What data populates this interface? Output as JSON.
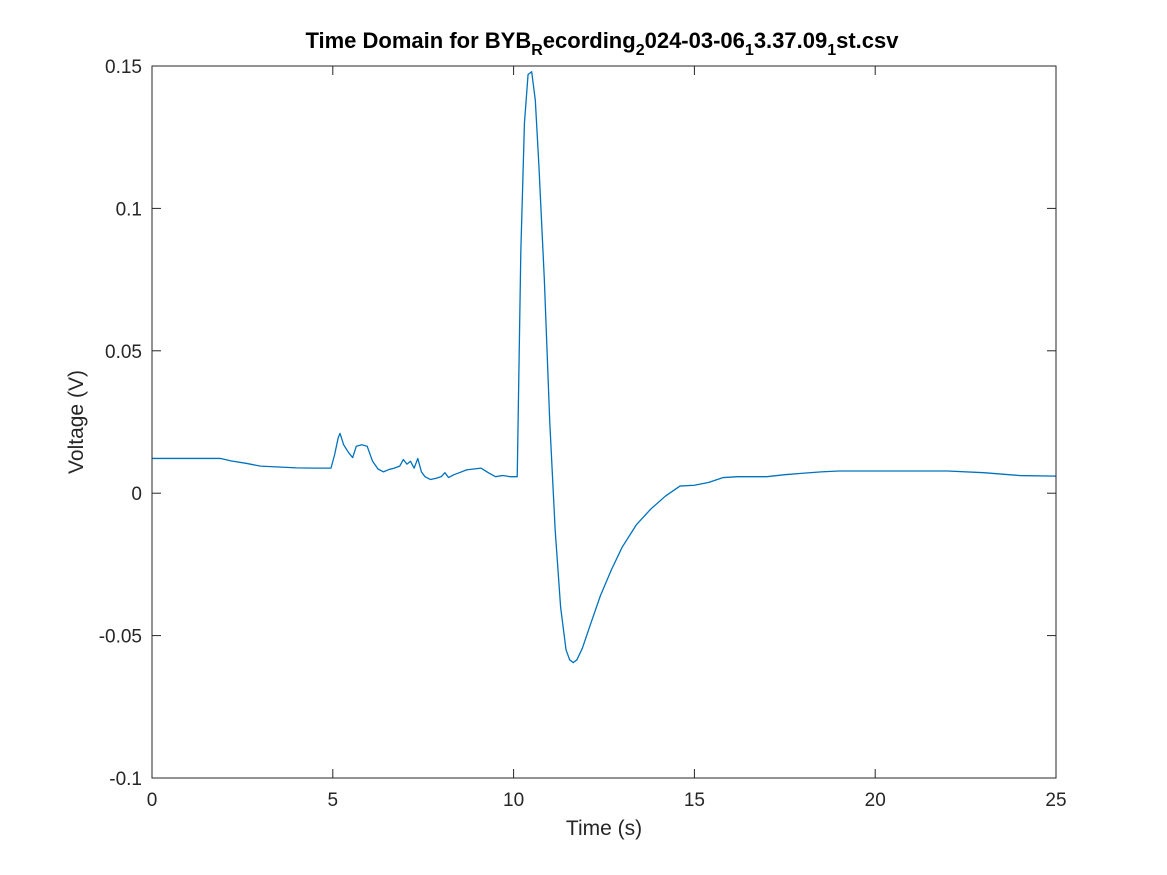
{
  "chart_data": {
    "type": "line",
    "title_parts": [
      {
        "text": "Time Domain for BYB",
        "sub": false
      },
      {
        "text": "R",
        "sub": true
      },
      {
        "text": "ecording",
        "sub": false
      },
      {
        "text": "2",
        "sub": true
      },
      {
        "text": "024-03-06",
        "sub": false
      },
      {
        "text": "1",
        "sub": true
      },
      {
        "text": "3.37.09",
        "sub": false
      },
      {
        "text": "1",
        "sub": true
      },
      {
        "text": "st.csv",
        "sub": false
      }
    ],
    "xlabel": "Time (s)",
    "ylabel": "Voltage (V)",
    "xlim": [
      0,
      25
    ],
    "ylim": [
      -0.1,
      0.15
    ],
    "xticks": [
      0,
      5,
      10,
      15,
      20,
      25
    ],
    "xtick_labels": [
      "0",
      "5",
      "10",
      "15",
      "20",
      "25"
    ],
    "yticks": [
      -0.1,
      -0.05,
      0,
      0.05,
      0.1,
      0.15
    ],
    "ytick_labels": [
      "-0.1",
      "-0.05",
      "0",
      "0.05",
      "0.1",
      "0.15"
    ],
    "grid": false,
    "line_color": "#0072BD",
    "series": [
      {
        "x": [
          0,
          1,
          1.9,
          2.2,
          2.6,
          3.0,
          3.5,
          4.0,
          4.5,
          4.95,
          5.05,
          5.15,
          5.2,
          5.3,
          5.45,
          5.55,
          5.65,
          5.8,
          5.95,
          6.1,
          6.25,
          6.4,
          6.55,
          6.7,
          6.85,
          6.95,
          7.05,
          7.15,
          7.25,
          7.35,
          7.45,
          7.55,
          7.7,
          7.85,
          8.0,
          8.1,
          8.2,
          8.35,
          8.5,
          8.7,
          8.9,
          9.1,
          9.3,
          9.5,
          9.7,
          9.9,
          10.1,
          10.2,
          10.3,
          10.4,
          10.5,
          10.6,
          10.7,
          10.85,
          11.0,
          11.15,
          11.3,
          11.45,
          11.55,
          11.65,
          11.75,
          11.9,
          12.1,
          12.4,
          12.7,
          13.0,
          13.4,
          13.8,
          14.2,
          14.6,
          15.0,
          15.4,
          15.8,
          16.2,
          16.6,
          17.0,
          17.5,
          18.0,
          18.5,
          19.0,
          20.0,
          21.0,
          22.0,
          23.0,
          24.0,
          25.0
        ],
        "y": [
          0.0122,
          0.0122,
          0.0122,
          0.0113,
          0.0105,
          0.0095,
          0.0092,
          0.0089,
          0.0088,
          0.0088,
          0.0135,
          0.0195,
          0.021,
          0.017,
          0.014,
          0.0125,
          0.0165,
          0.017,
          0.0165,
          0.0112,
          0.0085,
          0.0075,
          0.0083,
          0.0088,
          0.0095,
          0.0118,
          0.0102,
          0.0112,
          0.0088,
          0.0122,
          0.0075,
          0.0058,
          0.0048,
          0.0052,
          0.0058,
          0.0072,
          0.0055,
          0.0065,
          0.0072,
          0.0082,
          0.0085,
          0.0088,
          0.0072,
          0.0058,
          0.0062,
          0.0058,
          0.0058,
          0.085,
          0.13,
          0.147,
          0.148,
          0.138,
          0.115,
          0.075,
          0.025,
          -0.013,
          -0.04,
          -0.055,
          -0.0585,
          -0.0595,
          -0.0585,
          -0.0545,
          -0.047,
          -0.036,
          -0.027,
          -0.019,
          -0.011,
          -0.0055,
          -0.001,
          0.0025,
          0.0028,
          0.0038,
          0.0055,
          0.0058,
          0.0058,
          0.0058,
          0.0065,
          0.007,
          0.0075,
          0.0078,
          0.0078,
          0.0078,
          0.0078,
          0.0072,
          0.0062,
          0.006
        ]
      }
    ]
  }
}
